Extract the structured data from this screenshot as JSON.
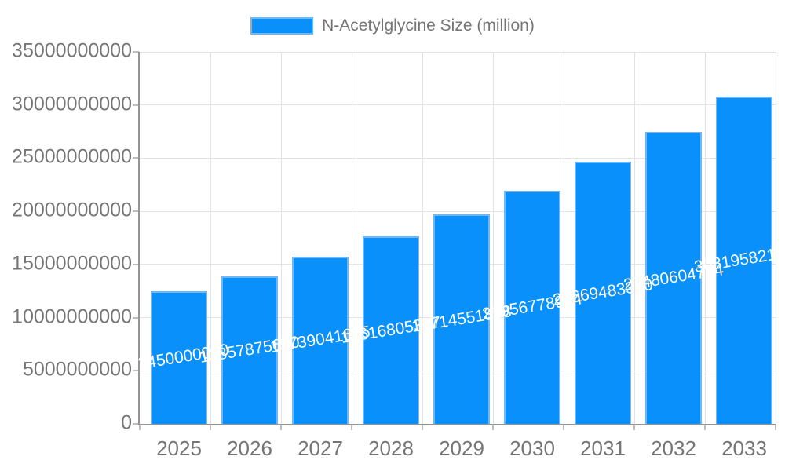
{
  "chart_data": {
    "type": "bar",
    "title": "",
    "legend": {
      "label": "N-Acetylglycine Size (million)",
      "position": "top"
    },
    "categories": [
      "2025",
      "2026",
      "2027",
      "2028",
      "2029",
      "2030",
      "2031",
      "2032",
      "2033"
    ],
    "series": [
      {
        "name": "N-Acetylglycine Size (million)",
        "values": [
          12450000000,
          13857875600,
          15739041625,
          17616805347,
          19714551808,
          21956778954,
          24669483360,
          27480604714,
          30819582164
        ]
      }
    ],
    "data_labels_shown": true,
    "xlabel": "",
    "ylabel": "",
    "ylim": [
      0,
      35000000000
    ],
    "ytick_step": 5000000000,
    "yticks": [
      "0",
      "5000000000",
      "10000000000",
      "15000000000",
      "20000000000",
      "25000000000",
      "30000000000",
      "35000000000"
    ],
    "grid": true,
    "colors": {
      "bar_fill": "#0990fb",
      "bar_border": "#6fb8f7",
      "data_label": "#ffffff",
      "axis_text": "#757575",
      "grid_line": "#e3e3e3",
      "axis_line": "#949494",
      "tick_mark": "#bdbdbd",
      "background": "#ffffff"
    }
  }
}
